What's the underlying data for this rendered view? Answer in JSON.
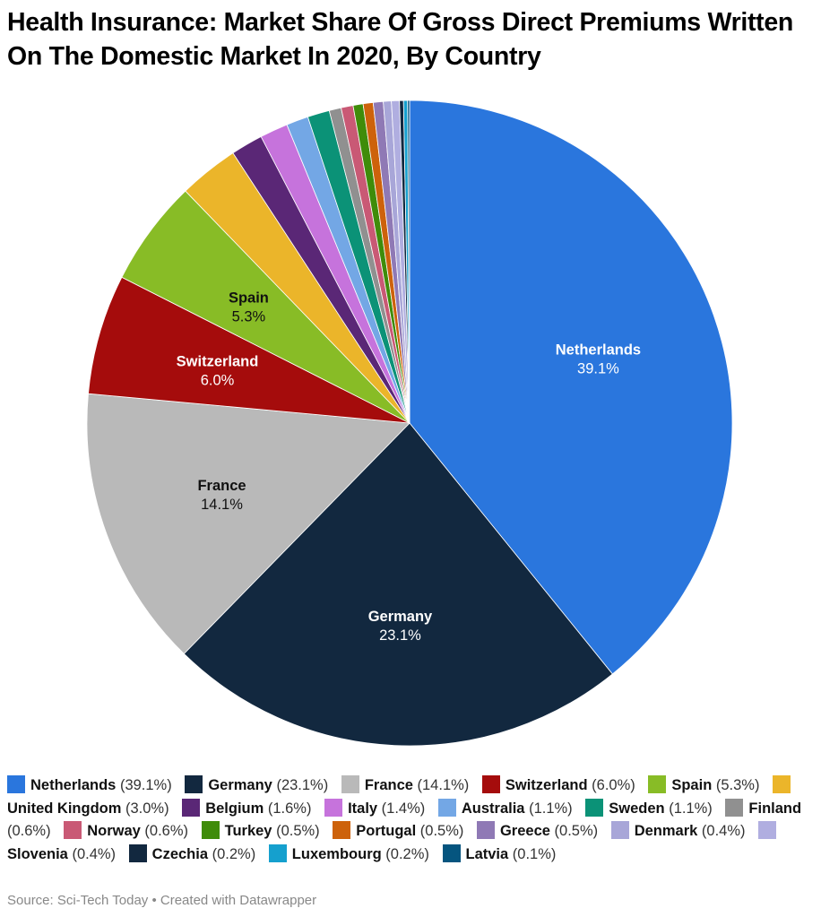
{
  "title": "Health Insurance: Market Share Of Gross Direct Premiums Written On The Domestic Market In 2020, By Country",
  "footer": "Source: Sci-Tech Today • Created with Datawrapper",
  "chart_data": {
    "type": "pie",
    "title": "Health Insurance: Market Share Of Gross Direct Premiums Written On The Domestic Market In 2020, By Country",
    "start_angle": "12 o'clock, clockwise",
    "legend_position": "bottom",
    "unit": "%",
    "slices": [
      {
        "label": "Netherlands",
        "value": 39.1,
        "color": "#2a76dd",
        "text_color": "#ffffff",
        "show_label": true
      },
      {
        "label": "Germany",
        "value": 23.1,
        "color": "#12283f",
        "text_color": "#ffffff",
        "show_label": true
      },
      {
        "label": "France",
        "value": 14.1,
        "color": "#b9b9b9",
        "text_color": "#111111",
        "show_label": true
      },
      {
        "label": "Switzerland",
        "value": 6.0,
        "color": "#a50c0c",
        "text_color": "#ffffff",
        "show_label": true
      },
      {
        "label": "Spain",
        "value": 5.3,
        "color": "#88bc26",
        "text_color": "#111111",
        "show_label": true
      },
      {
        "label": "United Kingdom",
        "value": 3.0,
        "color": "#ebb52a",
        "text_color": "#111111",
        "show_label": false
      },
      {
        "label": "Belgium",
        "value": 1.6,
        "color": "#5a2776",
        "text_color": "#ffffff",
        "show_label": false
      },
      {
        "label": "Italy",
        "value": 1.4,
        "color": "#c673dc",
        "text_color": "#111111",
        "show_label": false
      },
      {
        "label": "Australia",
        "value": 1.1,
        "color": "#73a7e5",
        "text_color": "#111111",
        "show_label": false
      },
      {
        "label": "Sweden",
        "value": 1.1,
        "color": "#0b9277",
        "text_color": "#ffffff",
        "show_label": false
      },
      {
        "label": "Finland",
        "value": 0.6,
        "color": "#909090",
        "text_color": "#111111",
        "show_label": false
      },
      {
        "label": "Norway",
        "value": 0.6,
        "color": "#c95975",
        "text_color": "#ffffff",
        "show_label": false
      },
      {
        "label": "Turkey",
        "value": 0.5,
        "color": "#3f8c0a",
        "text_color": "#ffffff",
        "show_label": false
      },
      {
        "label": "Portugal",
        "value": 0.5,
        "color": "#cd620b",
        "text_color": "#ffffff",
        "show_label": false
      },
      {
        "label": "Greece",
        "value": 0.5,
        "color": "#8f79b5",
        "text_color": "#ffffff",
        "show_label": false
      },
      {
        "label": "Denmark",
        "value": 0.4,
        "color": "#a8a6d8",
        "text_color": "#111111",
        "show_label": false
      },
      {
        "label": "Slovenia",
        "value": 0.4,
        "color": "#b0aee0",
        "text_color": "#111111",
        "show_label": false
      },
      {
        "label": "Czechia",
        "value": 0.2,
        "color": "#12283f",
        "text_color": "#ffffff",
        "show_label": false
      },
      {
        "label": "Luxembourg",
        "value": 0.2,
        "color": "#15a0ce",
        "text_color": "#ffffff",
        "show_label": false
      },
      {
        "label": "Latvia",
        "value": 0.1,
        "color": "#05557f",
        "text_color": "#ffffff",
        "show_label": false
      }
    ]
  }
}
